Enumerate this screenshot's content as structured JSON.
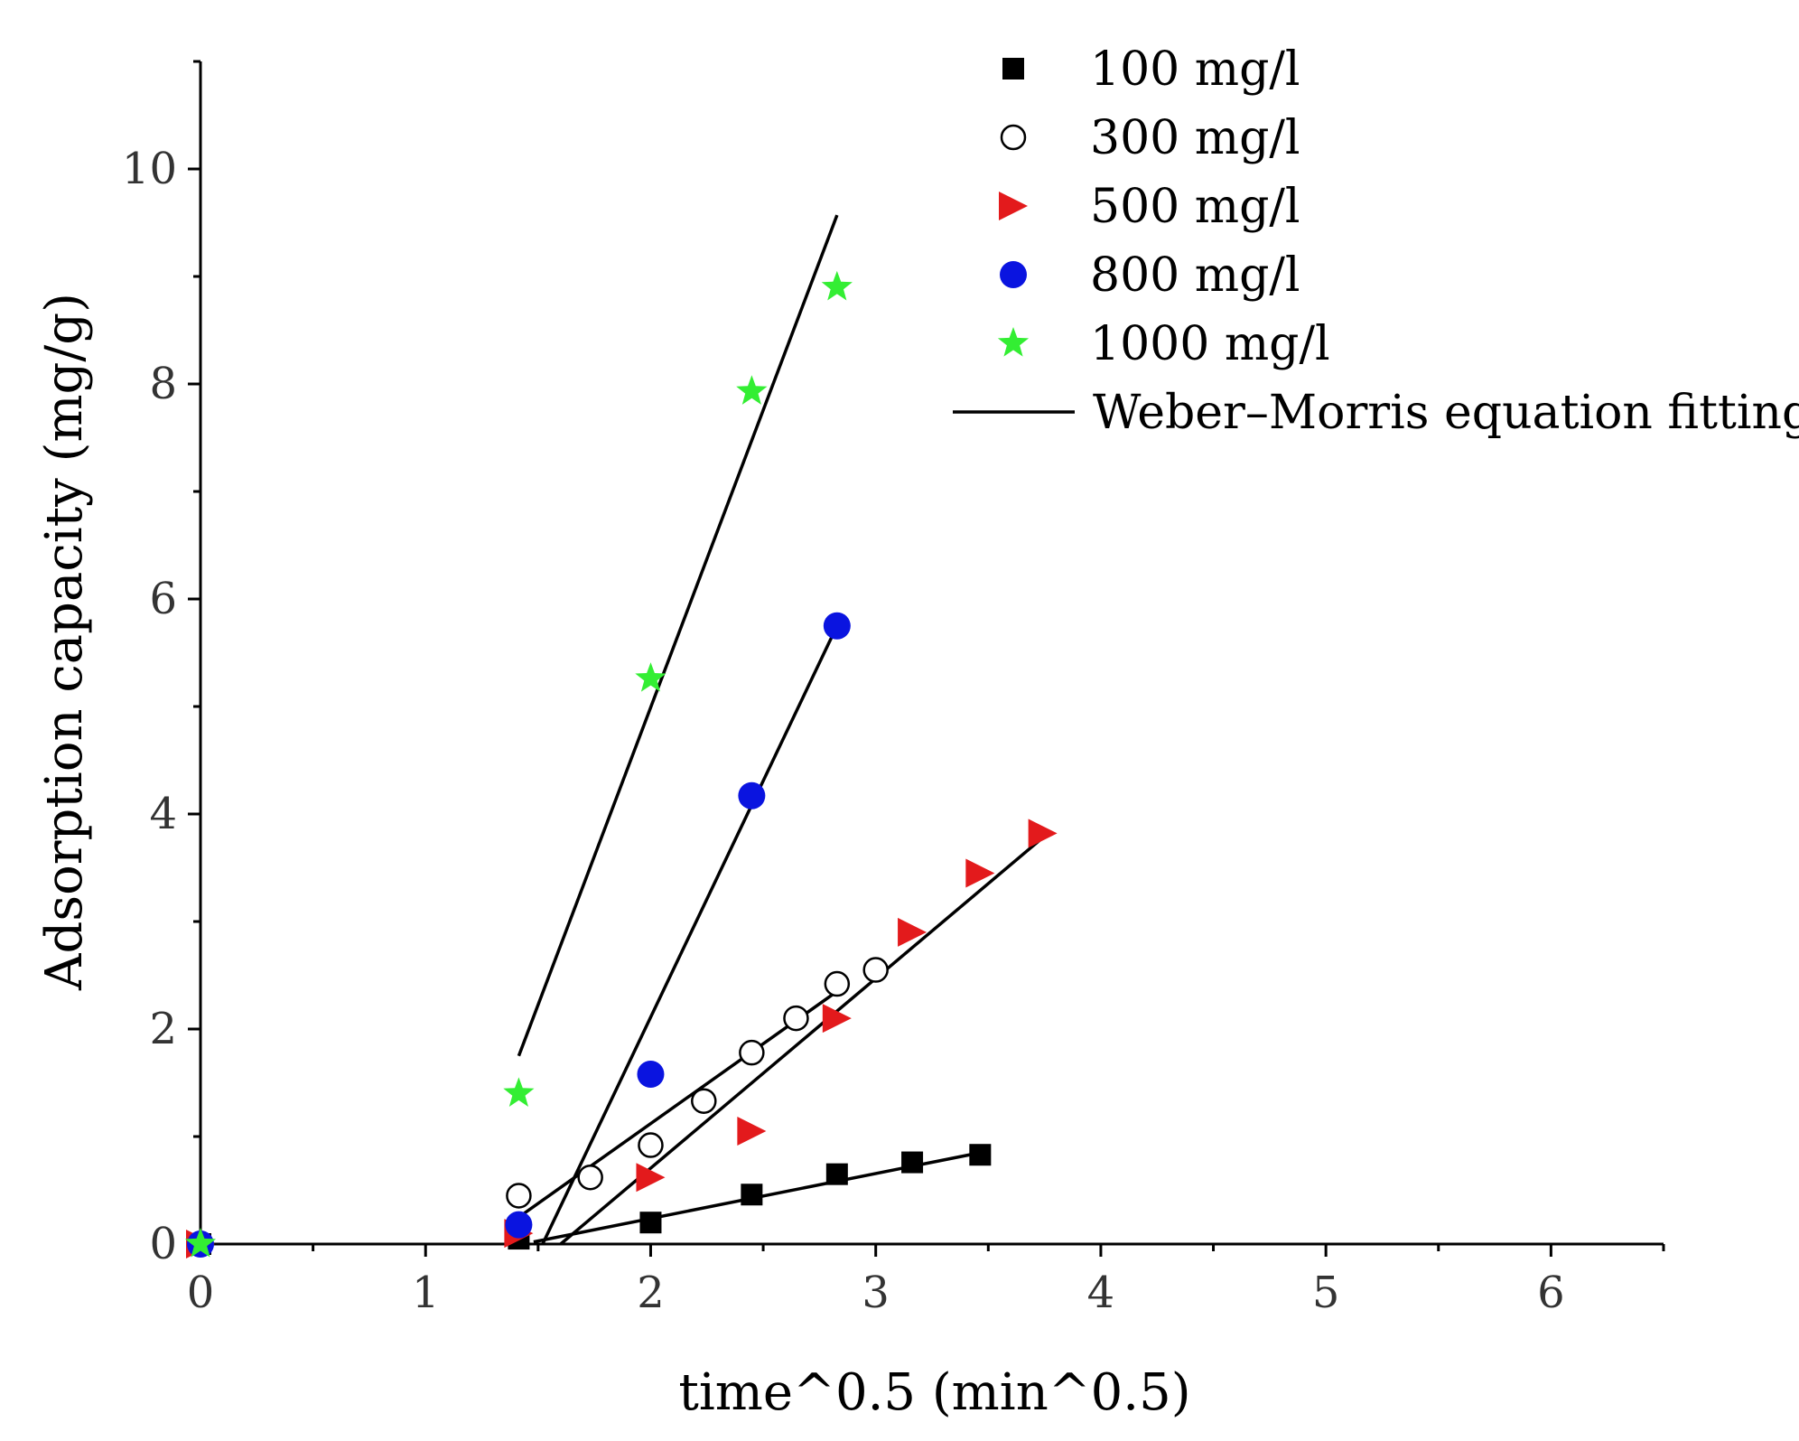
{
  "chart_data": {
    "type": "scatter",
    "title": "",
    "xlabel": "time^0.5 (min^0.5)",
    "ylabel": "Adsorption capacity (mg/g)",
    "xlim": [
      0,
      6.5
    ],
    "ylim": [
      0,
      11
    ],
    "xticks": [
      0,
      1,
      2,
      3,
      4,
      5,
      6
    ],
    "yticks": [
      0,
      2,
      4,
      6,
      8,
      10
    ],
    "grid": false,
    "legend_position": "top-right",
    "series": [
      {
        "name": "100 mg/l",
        "marker": "square",
        "color": "#000000",
        "x": [
          0,
          1.414,
          2.0,
          2.449,
          2.828,
          3.162,
          3.464
        ],
        "y": [
          0,
          0.05,
          0.2,
          0.46,
          0.65,
          0.76,
          0.83
        ]
      },
      {
        "name": "300 mg/l",
        "marker": "open-circle",
        "color": "#000000",
        "x": [
          0,
          1.414,
          1.732,
          2.0,
          2.236,
          2.449,
          2.646,
          2.828,
          3.0
        ],
        "y": [
          0,
          0.45,
          0.62,
          0.92,
          1.33,
          1.78,
          2.1,
          2.42,
          2.55
        ]
      },
      {
        "name": "500 mg/l",
        "marker": "right-triangle",
        "color": "#e31a1c",
        "x": [
          0,
          1.414,
          2.0,
          2.449,
          2.828,
          3.162,
          3.464,
          3.742
        ],
        "y": [
          0,
          0.1,
          0.62,
          1.05,
          2.1,
          2.9,
          3.45,
          3.82
        ]
      },
      {
        "name": "800 mg/l",
        "marker": "circle",
        "color": "#0a14e0",
        "x": [
          0,
          1.414,
          2.0,
          2.449,
          2.828
        ],
        "y": [
          0,
          0.18,
          1.58,
          4.17,
          5.75
        ]
      },
      {
        "name": "1000 mg/l",
        "marker": "star",
        "color": "#33ee33",
        "x": [
          0,
          1.414,
          2.0,
          2.449,
          2.828
        ],
        "y": [
          0,
          1.4,
          5.26,
          7.93,
          8.9
        ]
      }
    ],
    "fit_lines": [
      {
        "for": "100 mg/l",
        "x": [
          1.48,
          3.464
        ],
        "y": [
          0.02,
          0.85
        ]
      },
      {
        "for": "300 mg/l",
        "x": [
          1.414,
          2.828
        ],
        "y": [
          0.25,
          2.35
        ]
      },
      {
        "for": "500 mg/l",
        "x": [
          1.6,
          3.742
        ],
        "y": [
          0.0,
          3.78
        ]
      },
      {
        "for": "800 mg/l",
        "x": [
          1.52,
          2.828
        ],
        "y": [
          0.0,
          5.75
        ]
      },
      {
        "for": "1000 mg/l",
        "x": [
          1.414,
          2.828
        ],
        "y": [
          1.75,
          9.57
        ]
      }
    ],
    "fit_legend_label": "Weber–Morris  equation fitting"
  }
}
